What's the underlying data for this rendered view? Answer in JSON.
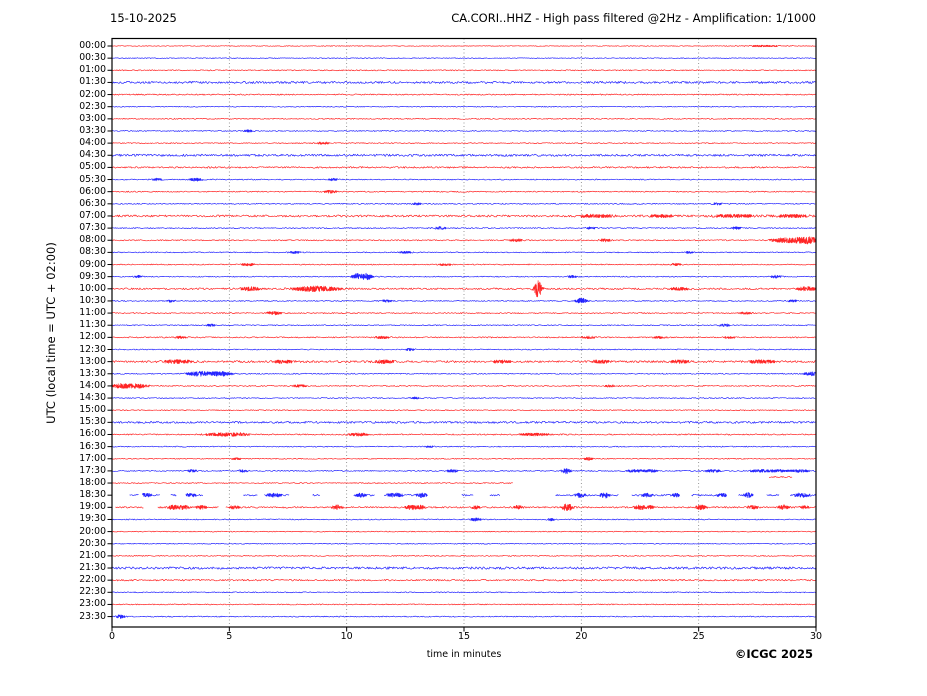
{
  "header": {
    "date": "15-10-2025",
    "title": "CA.CORI..HHZ - High pass filtered @2Hz - Amplification: 1/1000"
  },
  "axes": {
    "ylabel": "UTC (local time = UTC + 02:00)",
    "xlabel": "time in minutes",
    "x_ticks": [
      0,
      5,
      10,
      15,
      20,
      25,
      30
    ],
    "grid_ticks": [
      5,
      10,
      15,
      20,
      25
    ],
    "x_range": [
      0,
      30
    ]
  },
  "footer": {
    "credit": "©ICGC 2025"
  },
  "colors": {
    "trace_red": "#ff0000",
    "trace_blue": "#0000ff",
    "grid": "#808080",
    "frame": "#000000"
  },
  "chart_data": {
    "type": "line",
    "title": "CA.CORI..HHZ - High pass filtered @2Hz - Amplification: 1/1000",
    "subtitle": "15-10-2025",
    "xlabel": "time in minutes",
    "ylabel": "UTC (local time = UTC + 02:00)",
    "x_range_minutes": [
      0,
      30
    ],
    "row_interval_minutes": 30,
    "legend": "48 half-hour trace rows, alternating red (:00) and blue (:30); noise = baseline amplitude (px), events = {t: minute, a: amplitude px, w: width min}",
    "rows": [
      {
        "label": "00:00",
        "color": "red",
        "noise": 0.35,
        "events": [
          {
            "t": 27.8,
            "a": 0.5,
            "w": 0.8
          }
        ]
      },
      {
        "label": "00:30",
        "color": "blue",
        "noise": 0.4
      },
      {
        "label": "01:00",
        "color": "red",
        "noise": 0.55
      },
      {
        "label": "01:30",
        "color": "blue",
        "noise": 1.1
      },
      {
        "label": "02:00",
        "color": "red",
        "noise": 0.6
      },
      {
        "label": "02:30",
        "color": "blue",
        "noise": 0.45
      },
      {
        "label": "03:00",
        "color": "red",
        "noise": 0.5
      },
      {
        "label": "03:30",
        "color": "blue",
        "noise": 0.5,
        "events": [
          {
            "t": 5.8,
            "a": 0.8,
            "w": 0.15
          }
        ]
      },
      {
        "label": "04:00",
        "color": "red",
        "noise": 0.5,
        "events": [
          {
            "t": 9.0,
            "a": 0.9,
            "w": 0.2
          }
        ]
      },
      {
        "label": "04:30",
        "color": "blue",
        "noise": 1.1
      },
      {
        "label": "05:00",
        "color": "red",
        "noise": 0.8
      },
      {
        "label": "05:30",
        "color": "blue",
        "noise": 0.5,
        "events": [
          {
            "t": 1.9,
            "a": 1.1,
            "w": 0.15
          },
          {
            "t": 3.6,
            "a": 1.2,
            "w": 0.2
          },
          {
            "t": 9.4,
            "a": 0.9,
            "w": 0.15
          }
        ]
      },
      {
        "label": "06:00",
        "color": "red",
        "noise": 0.55,
        "events": [
          {
            "t": 9.3,
            "a": 1.0,
            "w": 0.2
          }
        ]
      },
      {
        "label": "06:30",
        "color": "blue",
        "noise": 0.55,
        "events": [
          {
            "t": 13.0,
            "a": 0.8,
            "w": 0.15
          },
          {
            "t": 25.8,
            "a": 0.8,
            "w": 0.15
          }
        ]
      },
      {
        "label": "07:00",
        "color": "red",
        "noise": 1.0,
        "events": [
          {
            "t": 20.6,
            "a": 0.9,
            "w": 0.5
          },
          {
            "t": 23.4,
            "a": 0.8,
            "w": 0.4
          },
          {
            "t": 26.5,
            "a": 0.9,
            "w": 0.6
          },
          {
            "t": 29.0,
            "a": 0.8,
            "w": 0.5
          }
        ]
      },
      {
        "label": "07:30",
        "color": "blue",
        "noise": 0.55,
        "events": [
          {
            "t": 14.0,
            "a": 1.2,
            "w": 0.15
          },
          {
            "t": 20.4,
            "a": 0.8,
            "w": 0.15
          },
          {
            "t": 26.6,
            "a": 0.9,
            "w": 0.15
          }
        ]
      },
      {
        "label": "08:00",
        "color": "red",
        "noise": 0.6,
        "events": [
          {
            "t": 17.2,
            "a": 1.0,
            "w": 0.2
          },
          {
            "t": 21.0,
            "a": 1.2,
            "w": 0.15
          },
          {
            "t": 28.5,
            "a": 1.5,
            "w": 0.3
          },
          {
            "t": 29.3,
            "a": 2.4,
            "w": 0.4
          },
          {
            "t": 29.8,
            "a": 2.0,
            "w": 0.25
          }
        ]
      },
      {
        "label": "08:30",
        "color": "blue",
        "noise": 0.5,
        "events": [
          {
            "t": 7.8,
            "a": 0.8,
            "w": 0.2
          },
          {
            "t": 12.5,
            "a": 0.8,
            "w": 0.2
          },
          {
            "t": 24.6,
            "a": 0.7,
            "w": 0.15
          }
        ]
      },
      {
        "label": "09:00",
        "color": "red",
        "noise": 0.5,
        "events": [
          {
            "t": 5.8,
            "a": 1.0,
            "w": 0.2
          },
          {
            "t": 14.2,
            "a": 0.8,
            "w": 0.2
          },
          {
            "t": 24.0,
            "a": 0.8,
            "w": 0.2
          }
        ]
      },
      {
        "label": "09:30",
        "color": "blue",
        "noise": 0.5,
        "events": [
          {
            "t": 1.1,
            "a": 1.0,
            "w": 0.12
          },
          {
            "t": 10.45,
            "a": 2.8,
            "w": 0.15
          },
          {
            "t": 10.85,
            "a": 3.0,
            "w": 0.15
          },
          {
            "t": 19.6,
            "a": 0.9,
            "w": 0.15
          },
          {
            "t": 28.3,
            "a": 1.1,
            "w": 0.15
          }
        ]
      },
      {
        "label": "10:00",
        "color": "red",
        "noise": 0.85,
        "events": [
          {
            "t": 5.9,
            "a": 1.5,
            "w": 0.25
          },
          {
            "t": 8.7,
            "a": 2.2,
            "w": 0.6
          },
          {
            "t": 18.15,
            "a": 9.0,
            "w": 0.1
          },
          {
            "t": 24.2,
            "a": 0.9,
            "w": 0.3
          },
          {
            "t": 29.6,
            "a": 1.4,
            "w": 0.3
          }
        ]
      },
      {
        "label": "10:30",
        "color": "blue",
        "noise": 0.5,
        "events": [
          {
            "t": 2.5,
            "a": 1.0,
            "w": 0.15
          },
          {
            "t": 11.7,
            "a": 1.0,
            "w": 0.15
          },
          {
            "t": 20.0,
            "a": 2.6,
            "w": 0.15
          },
          {
            "t": 29.0,
            "a": 0.8,
            "w": 0.15
          }
        ]
      },
      {
        "label": "11:00",
        "color": "red",
        "noise": 0.55,
        "events": [
          {
            "t": 6.9,
            "a": 1.5,
            "w": 0.2
          },
          {
            "t": 27.0,
            "a": 0.7,
            "w": 0.2
          }
        ]
      },
      {
        "label": "11:30",
        "color": "blue",
        "noise": 0.5,
        "events": [
          {
            "t": 4.2,
            "a": 0.8,
            "w": 0.15
          },
          {
            "t": 26.1,
            "a": 1.1,
            "w": 0.15
          }
        ]
      },
      {
        "label": "12:00",
        "color": "red",
        "noise": 0.6,
        "events": [
          {
            "t": 2.9,
            "a": 0.8,
            "w": 0.2
          },
          {
            "t": 11.5,
            "a": 0.8,
            "w": 0.25
          },
          {
            "t": 20.3,
            "a": 0.8,
            "w": 0.25
          },
          {
            "t": 23.3,
            "a": 0.8,
            "w": 0.2
          },
          {
            "t": 26.3,
            "a": 0.7,
            "w": 0.2
          }
        ]
      },
      {
        "label": "12:30",
        "color": "blue",
        "noise": 0.5,
        "events": [
          {
            "t": 12.7,
            "a": 0.9,
            "w": 0.15
          }
        ]
      },
      {
        "label": "13:00",
        "color": "red",
        "noise": 1.0,
        "events": [
          {
            "t": 2.8,
            "a": 1.2,
            "w": 0.4
          },
          {
            "t": 7.3,
            "a": 0.9,
            "w": 0.3
          },
          {
            "t": 11.6,
            "a": 1.0,
            "w": 0.3
          },
          {
            "t": 16.6,
            "a": 0.9,
            "w": 0.3
          },
          {
            "t": 20.8,
            "a": 0.9,
            "w": 0.3
          },
          {
            "t": 24.2,
            "a": 0.9,
            "w": 0.3
          },
          {
            "t": 27.7,
            "a": 1.0,
            "w": 0.4
          }
        ]
      },
      {
        "label": "13:30",
        "color": "blue",
        "noise": 0.55,
        "events": [
          {
            "t": 3.7,
            "a": 2.2,
            "w": 0.3
          },
          {
            "t": 4.6,
            "a": 2.2,
            "w": 0.3
          },
          {
            "t": 29.8,
            "a": 1.6,
            "w": 0.2
          }
        ]
      },
      {
        "label": "14:00",
        "color": "red",
        "noise": 0.55,
        "events": [
          {
            "t": 0.4,
            "a": 2.0,
            "w": 0.25
          },
          {
            "t": 1.1,
            "a": 1.8,
            "w": 0.3
          },
          {
            "t": 8.0,
            "a": 1.0,
            "w": 0.2
          },
          {
            "t": 21.2,
            "a": 0.7,
            "w": 0.2
          }
        ]
      },
      {
        "label": "14:30",
        "color": "blue",
        "noise": 0.5,
        "events": [
          {
            "t": 12.9,
            "a": 0.7,
            "w": 0.15
          }
        ]
      },
      {
        "label": "15:00",
        "color": "red",
        "noise": 0.5
      },
      {
        "label": "15:30",
        "color": "blue",
        "noise": 1.0
      },
      {
        "label": "16:00",
        "color": "red",
        "noise": 0.6,
        "events": [
          {
            "t": 4.6,
            "a": 1.3,
            "w": 0.4
          },
          {
            "t": 5.4,
            "a": 1.2,
            "w": 0.3
          },
          {
            "t": 10.5,
            "a": 1.1,
            "w": 0.3
          },
          {
            "t": 18.0,
            "a": 0.9,
            "w": 0.5
          }
        ]
      },
      {
        "label": "16:30",
        "color": "blue",
        "noise": 0.5,
        "events": [
          {
            "t": 13.5,
            "a": 0.7,
            "w": 0.15
          }
        ]
      },
      {
        "label": "17:00",
        "color": "red",
        "noise": 0.45,
        "events": [
          {
            "t": 5.3,
            "a": 0.8,
            "w": 0.15
          },
          {
            "t": 20.3,
            "a": 1.4,
            "w": 0.12
          }
        ]
      },
      {
        "label": "17:30",
        "color": "blue",
        "noise": 0.55,
        "events": [
          {
            "t": 3.4,
            "a": 0.9,
            "w": 0.15
          },
          {
            "t": 5.6,
            "a": 0.8,
            "w": 0.15
          },
          {
            "t": 14.5,
            "a": 1.2,
            "w": 0.15
          },
          {
            "t": 19.35,
            "a": 2.4,
            "w": 0.12
          },
          {
            "t": 22.3,
            "a": 1.0,
            "w": 0.3
          },
          {
            "t": 23.0,
            "a": 0.9,
            "w": 0.2
          },
          {
            "t": 25.6,
            "a": 1.0,
            "w": 0.25
          },
          {
            "t": 27.6,
            "a": 1.0,
            "w": 0.3
          },
          {
            "t": 28.4,
            "a": 0.9,
            "w": 0.25
          },
          {
            "t": 29.3,
            "a": 1.0,
            "w": 0.3
          }
        ]
      },
      {
        "label": "18:00",
        "color": "red",
        "noise": 0.5,
        "segments": [
          [
            0,
            17.1
          ]
        ],
        "extra": [
          {
            "from": 28.0,
            "to": 29.0,
            "dy": -6,
            "noise": 0.6
          }
        ]
      },
      {
        "label": "18:30",
        "color": "blue",
        "noise": 0.8,
        "segments": [
          [
            0.75,
            1.15
          ],
          [
            1.3,
            2.05
          ],
          [
            2.5,
            2.75
          ],
          [
            3.15,
            3.9
          ],
          [
            5.6,
            6.2
          ],
          [
            6.5,
            7.55
          ],
          [
            8.55,
            8.9
          ],
          [
            10.3,
            11.2
          ],
          [
            11.6,
            13.45
          ],
          [
            14.9,
            15.4
          ],
          [
            16.1,
            16.55
          ],
          [
            18.9,
            21.6
          ],
          [
            22.15,
            24.2
          ],
          [
            24.7,
            26.2
          ],
          [
            26.7,
            27.35
          ],
          [
            27.9,
            28.45
          ],
          [
            28.9,
            30
          ]
        ],
        "events": [
          {
            "t": 1.45,
            "a": 1.4,
            "w": 0.15
          },
          {
            "t": 3.35,
            "a": 1.4,
            "w": 0.15
          },
          {
            "t": 6.9,
            "a": 1.6,
            "w": 0.2
          },
          {
            "t": 10.6,
            "a": 1.4,
            "w": 0.15
          },
          {
            "t": 12.05,
            "a": 1.6,
            "w": 0.2
          },
          {
            "t": 13.2,
            "a": 1.7,
            "w": 0.15
          },
          {
            "t": 19.95,
            "a": 1.6,
            "w": 0.15
          },
          {
            "t": 21.0,
            "a": 2.4,
            "w": 0.12
          },
          {
            "t": 22.8,
            "a": 1.4,
            "w": 0.15
          },
          {
            "t": 24.05,
            "a": 1.4,
            "w": 0.12
          },
          {
            "t": 26.0,
            "a": 1.4,
            "w": 0.15
          },
          {
            "t": 27.1,
            "a": 2.0,
            "w": 0.12
          },
          {
            "t": 29.4,
            "a": 1.7,
            "w": 0.2
          }
        ]
      },
      {
        "label": "19:00",
        "color": "red",
        "noise": 0.75,
        "segments": [
          [
            0.15,
            1.35
          ],
          [
            1.95,
            4.55
          ],
          [
            4.85,
            30
          ]
        ],
        "events": [
          {
            "t": 2.6,
            "a": 1.7,
            "w": 0.15
          },
          {
            "t": 3.05,
            "a": 1.7,
            "w": 0.15
          },
          {
            "t": 3.8,
            "a": 1.5,
            "w": 0.15
          },
          {
            "t": 5.2,
            "a": 1.2,
            "w": 0.15
          },
          {
            "t": 9.6,
            "a": 1.8,
            "w": 0.15
          },
          {
            "t": 12.75,
            "a": 2.0,
            "w": 0.15
          },
          {
            "t": 13.15,
            "a": 1.5,
            "w": 0.12
          },
          {
            "t": 15.5,
            "a": 1.3,
            "w": 0.12
          },
          {
            "t": 17.3,
            "a": 1.5,
            "w": 0.12
          },
          {
            "t": 19.4,
            "a": 3.4,
            "w": 0.15
          },
          {
            "t": 22.5,
            "a": 1.9,
            "w": 0.15
          },
          {
            "t": 22.95,
            "a": 1.4,
            "w": 0.12
          },
          {
            "t": 25.1,
            "a": 1.8,
            "w": 0.15
          },
          {
            "t": 27.3,
            "a": 1.4,
            "w": 0.15
          },
          {
            "t": 28.6,
            "a": 1.9,
            "w": 0.15
          },
          {
            "t": 29.5,
            "a": 1.0,
            "w": 0.15
          }
        ]
      },
      {
        "label": "19:30",
        "color": "blue",
        "noise": 0.5,
        "events": [
          {
            "t": 15.5,
            "a": 1.2,
            "w": 0.15
          },
          {
            "t": 18.7,
            "a": 1.0,
            "w": 0.12
          }
        ]
      },
      {
        "label": "20:00",
        "color": "red",
        "noise": 0.45
      },
      {
        "label": "20:30",
        "color": "blue",
        "noise": 0.45
      },
      {
        "label": "21:00",
        "color": "red",
        "noise": 0.5
      },
      {
        "label": "21:30",
        "color": "blue",
        "noise": 1.15
      },
      {
        "label": "22:00",
        "color": "red",
        "noise": 0.8
      },
      {
        "label": "22:30",
        "color": "blue",
        "noise": 0.5
      },
      {
        "label": "23:00",
        "color": "red",
        "noise": 0.5
      },
      {
        "label": "23:30",
        "color": "blue",
        "noise": 0.5,
        "events": [
          {
            "t": 0.35,
            "a": 1.5,
            "w": 0.12
          }
        ]
      }
    ]
  }
}
